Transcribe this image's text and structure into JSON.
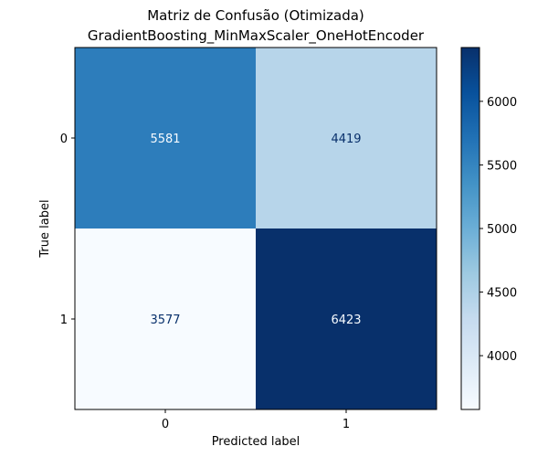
{
  "chart_data": {
    "type": "heatmap",
    "title": "Matriz de Confusão (Otimizada)",
    "subtitle": "GradientBoosting_MinMaxScaler_OneHotEncoder",
    "xlabel": "Predicted label",
    "ylabel": "True label",
    "x_categories": [
      "0",
      "1"
    ],
    "y_categories": [
      "0",
      "1"
    ],
    "matrix": [
      [
        5581,
        4419
      ],
      [
        3577,
        6423
      ]
    ],
    "colormap": "Blues",
    "colorbar": {
      "range": [
        3577,
        6423
      ],
      "ticks": [
        4000,
        4500,
        5000,
        5500,
        6000
      ],
      "tick_labels": [
        "4000",
        "4500",
        "5000",
        "5500",
        "6000"
      ]
    },
    "colors": {
      "low": "#f7fbff",
      "high": "#08306b",
      "text_dark": "#08306b",
      "text_light": "#f7fbff"
    }
  }
}
